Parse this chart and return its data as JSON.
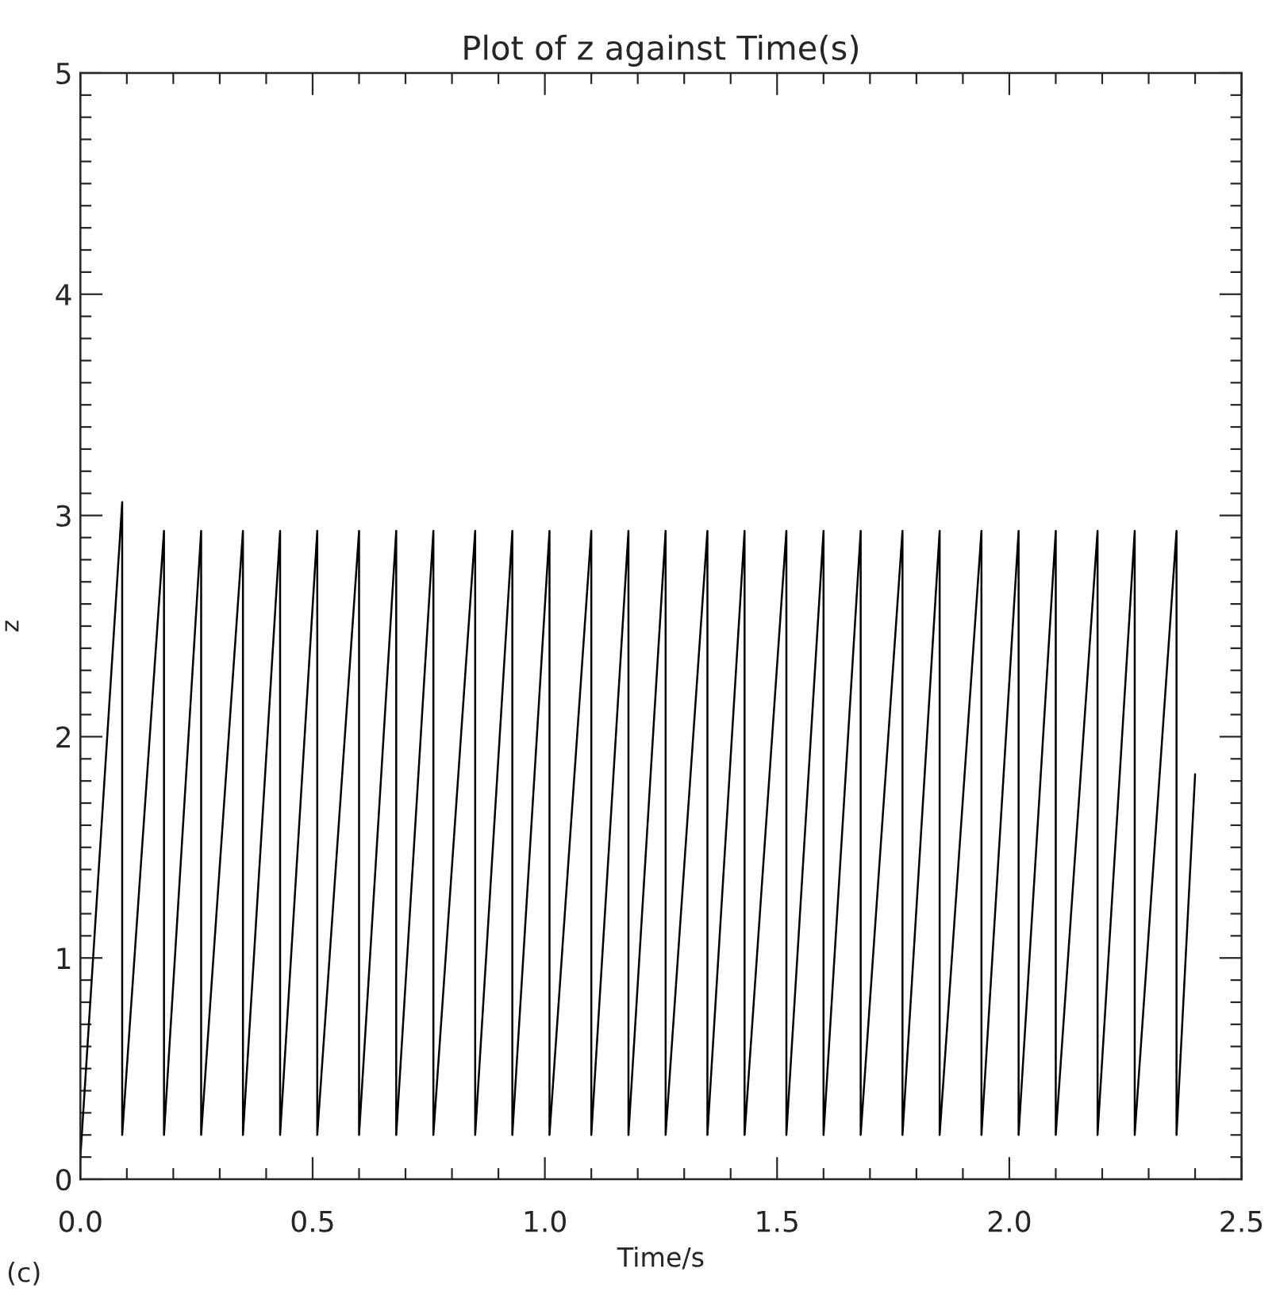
{
  "chart_data": {
    "type": "line",
    "title": "Plot of z against Time(s)",
    "xlabel": "Time/s",
    "ylabel": "z",
    "annotations": [
      "(c)"
    ],
    "series": [
      {
        "color": "#000000",
        "x": [
          0,
          0.09,
          0.09,
          0.18,
          0.18,
          0.26,
          0.26,
          0.35,
          0.35,
          0.43,
          0.43,
          0.51,
          0.51,
          0.6,
          0.6,
          0.68,
          0.68,
          0.76,
          0.76,
          0.85,
          0.85,
          0.93,
          0.93,
          1.01,
          1.01,
          1.1,
          1.1,
          1.18,
          1.18,
          1.26,
          1.26,
          1.35,
          1.35,
          1.43,
          1.43,
          1.52,
          1.52,
          1.6,
          1.6,
          1.68,
          1.68,
          1.77,
          1.77,
          1.85,
          1.85,
          1.94,
          1.94,
          2.02,
          2.02,
          2.1,
          2.1,
          2.19,
          2.19,
          2.27,
          2.27,
          2.36,
          2.36,
          2.4
        ],
        "values": [
          0.1,
          3.06,
          0.2,
          2.93,
          0.2,
          2.93,
          0.2,
          2.93,
          0.2,
          2.93,
          0.2,
          2.93,
          0.2,
          2.93,
          0.2,
          2.93,
          0.2,
          2.93,
          0.2,
          2.93,
          0.2,
          2.93,
          0.2,
          2.93,
          0.2,
          2.93,
          0.2,
          2.93,
          0.2,
          2.93,
          0.2,
          2.93,
          0.2,
          2.93,
          0.2,
          2.93,
          0.2,
          2.93,
          0.2,
          2.93,
          0.2,
          2.93,
          0.2,
          2.93,
          0.2,
          2.93,
          0.2,
          2.93,
          0.2,
          2.93,
          0.2,
          2.93,
          0.2,
          2.93,
          0.2,
          2.93,
          0.2,
          1.83
        ]
      }
    ],
    "xlim": [
      0,
      2.5
    ],
    "ylim": [
      0,
      5
    ],
    "xticks": [
      {
        "value": 0,
        "label": "0.0"
      },
      {
        "value": 0.1,
        "label": null
      },
      {
        "value": 0.2,
        "label": null
      },
      {
        "value": 0.3,
        "label": null
      },
      {
        "value": 0.4,
        "label": null
      },
      {
        "value": 0.5,
        "label": "0.5"
      },
      {
        "value": 0.6,
        "label": null
      },
      {
        "value": 0.7,
        "label": null
      },
      {
        "value": 0.8,
        "label": null
      },
      {
        "value": 0.9,
        "label": null
      },
      {
        "value": 1.0,
        "label": "1.0"
      },
      {
        "value": 1.1,
        "label": null
      },
      {
        "value": 1.2,
        "label": null
      },
      {
        "value": 1.3,
        "label": null
      },
      {
        "value": 1.4,
        "label": null
      },
      {
        "value": 1.5,
        "label": "1.5"
      },
      {
        "value": 1.6,
        "label": null
      },
      {
        "value": 1.7,
        "label": null
      },
      {
        "value": 1.8,
        "label": null
      },
      {
        "value": 1.9,
        "label": null
      },
      {
        "value": 2.0,
        "label": "2.0"
      },
      {
        "value": 2.1,
        "label": null
      },
      {
        "value": 2.2,
        "label": null
      },
      {
        "value": 2.3,
        "label": null
      },
      {
        "value": 2.4,
        "label": null
      },
      {
        "value": 2.5,
        "label": "2.5"
      }
    ],
    "yticks": [
      0,
      {
        "value": 0.1,
        "label": null
      },
      {
        "value": 0.2,
        "label": null
      },
      {
        "value": 0.3,
        "label": null
      },
      {
        "value": 0.4,
        "label": null
      },
      {
        "value": 0.5,
        "label": null
      },
      {
        "value": 0.6,
        "label": null
      },
      {
        "value": 0.7,
        "label": null
      },
      {
        "value": 0.8,
        "label": null
      },
      {
        "value": 0.9,
        "label": null
      },
      1,
      {
        "value": 1.1,
        "label": null
      },
      {
        "value": 1.2,
        "label": null
      },
      {
        "value": 1.3,
        "label": null
      },
      {
        "value": 1.4,
        "label": null
      },
      {
        "value": 1.5,
        "label": null
      },
      {
        "value": 1.6,
        "label": null
      },
      {
        "value": 1.7,
        "label": null
      },
      {
        "value": 1.8,
        "label": null
      },
      {
        "value": 1.9,
        "label": null
      },
      2,
      {
        "value": 2.1,
        "label": null
      },
      {
        "value": 2.2,
        "label": null
      },
      {
        "value": 2.3,
        "label": null
      },
      {
        "value": 2.4,
        "label": null
      },
      {
        "value": 2.5,
        "label": null
      },
      {
        "value": 2.6,
        "label": null
      },
      {
        "value": 2.7,
        "label": null
      },
      {
        "value": 2.8,
        "label": null
      },
      {
        "value": 2.9,
        "label": null
      },
      3,
      {
        "value": 3.1,
        "label": null
      },
      {
        "value": 3.2,
        "label": null
      },
      {
        "value": 3.3,
        "label": null
      },
      {
        "value": 3.4,
        "label": null
      },
      {
        "value": 3.5,
        "label": null
      },
      {
        "value": 3.6,
        "label": null
      },
      {
        "value": 3.7,
        "label": null
      },
      {
        "value": 3.8,
        "label": null
      },
      {
        "value": 3.9,
        "label": null
      },
      4,
      {
        "value": 4.1,
        "label": null
      },
      {
        "value": 4.2,
        "label": null
      },
      {
        "value": 4.3,
        "label": null
      },
      {
        "value": 4.4,
        "label": null
      },
      {
        "value": 4.5,
        "label": null
      },
      {
        "value": 4.6,
        "label": null
      },
      {
        "value": 4.7,
        "label": null
      },
      {
        "value": 4.8,
        "label": null
      },
      {
        "value": 4.9,
        "label": null
      },
      5
    ],
    "grid": false,
    "marker": "none",
    "line_style": "solid"
  }
}
